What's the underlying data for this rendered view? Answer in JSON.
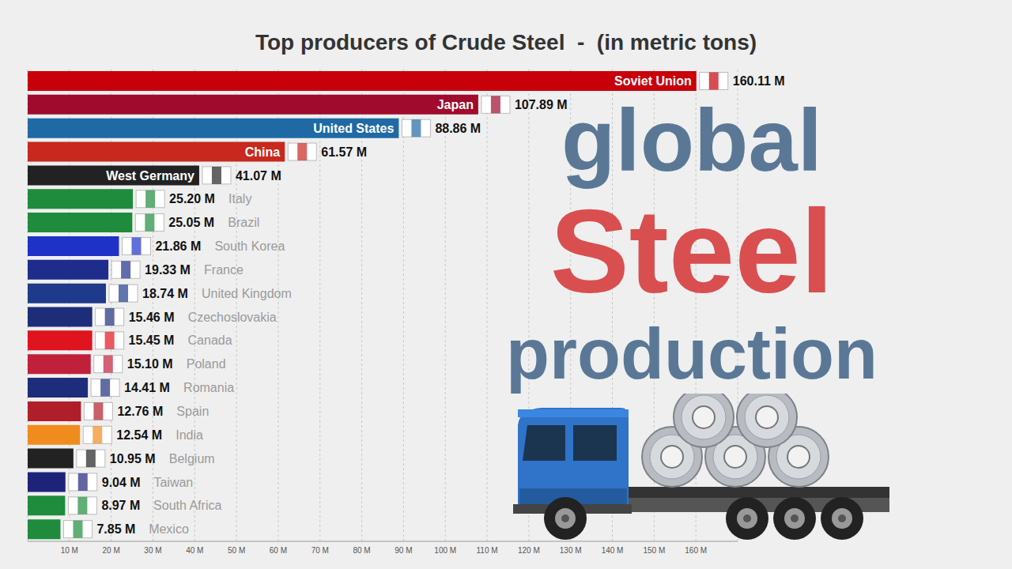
{
  "chart_data": {
    "type": "bar",
    "title": "Top producers of Crude Steel  -  (in metric tons)",
    "orientation": "horizontal",
    "categories": [
      "Soviet Union",
      "Japan",
      "United States",
      "China",
      "West Germany",
      "Italy",
      "Brazil",
      "South Korea",
      "France",
      "United Kingdom",
      "Czechoslovakia",
      "Canada",
      "Poland",
      "Romania",
      "Spain",
      "India",
      "Belgium",
      "Taiwan",
      "South Africa",
      "Mexico"
    ],
    "values": [
      160.11,
      107.89,
      88.86,
      61.57,
      41.07,
      25.2,
      25.05,
      21.86,
      19.33,
      18.74,
      15.46,
      15.45,
      15.1,
      14.41,
      12.76,
      12.54,
      10.95,
      9.04,
      8.97,
      7.85
    ],
    "value_labels": [
      "160.11 M",
      "107.89 M",
      "88.86 M",
      "61.57 M",
      "41.07 M",
      "25.20 M",
      "25.05 M",
      "21.86 M",
      "19.33 M",
      "18.74 M",
      "15.46 M",
      "15.45 M",
      "15.10 M",
      "14.41 M",
      "12.76 M",
      "12.54 M",
      "10.95 M",
      "9.04 M",
      "8.97 M",
      "7.85 M"
    ],
    "colors": [
      "#c8000a",
      "#a00a2c",
      "#1f6aa5",
      "#c8281e",
      "#222222",
      "#1e8c3c",
      "#1e8c3c",
      "#1e32c8",
      "#1e2d8c",
      "#1e3a8c",
      "#1e2d7a",
      "#e0141e",
      "#c0203a",
      "#1e2d7a",
      "#b01e2a",
      "#f08c1e",
      "#222222",
      "#1e237a",
      "#1e8c3c",
      "#1e8c3c"
    ],
    "xlim": [
      0,
      170
    ],
    "xticks": [
      {
        "value": 10,
        "label": "10 M"
      },
      {
        "value": 20,
        "label": "20 M"
      },
      {
        "value": 30,
        "label": "30 M"
      },
      {
        "value": 40,
        "label": "40 M"
      },
      {
        "value": 50,
        "label": "50 M"
      },
      {
        "value": 60,
        "label": "60 M"
      },
      {
        "value": 70,
        "label": "70 M"
      },
      {
        "value": 80,
        "label": "80 M"
      },
      {
        "value": 90,
        "label": "90 M"
      },
      {
        "value": 100,
        "label": "100 M"
      },
      {
        "value": 110,
        "label": "110 M"
      },
      {
        "value": 120,
        "label": "120 M"
      },
      {
        "value": 130,
        "label": "130 M"
      },
      {
        "value": 140,
        "label": "140 M"
      },
      {
        "value": 150,
        "label": "150 M"
      },
      {
        "value": 160,
        "label": "160 M"
      }
    ],
    "grid": true,
    "data_labels": true,
    "tick_labels": "x",
    "annotations": [
      "global",
      "Steel",
      "production"
    ]
  }
}
